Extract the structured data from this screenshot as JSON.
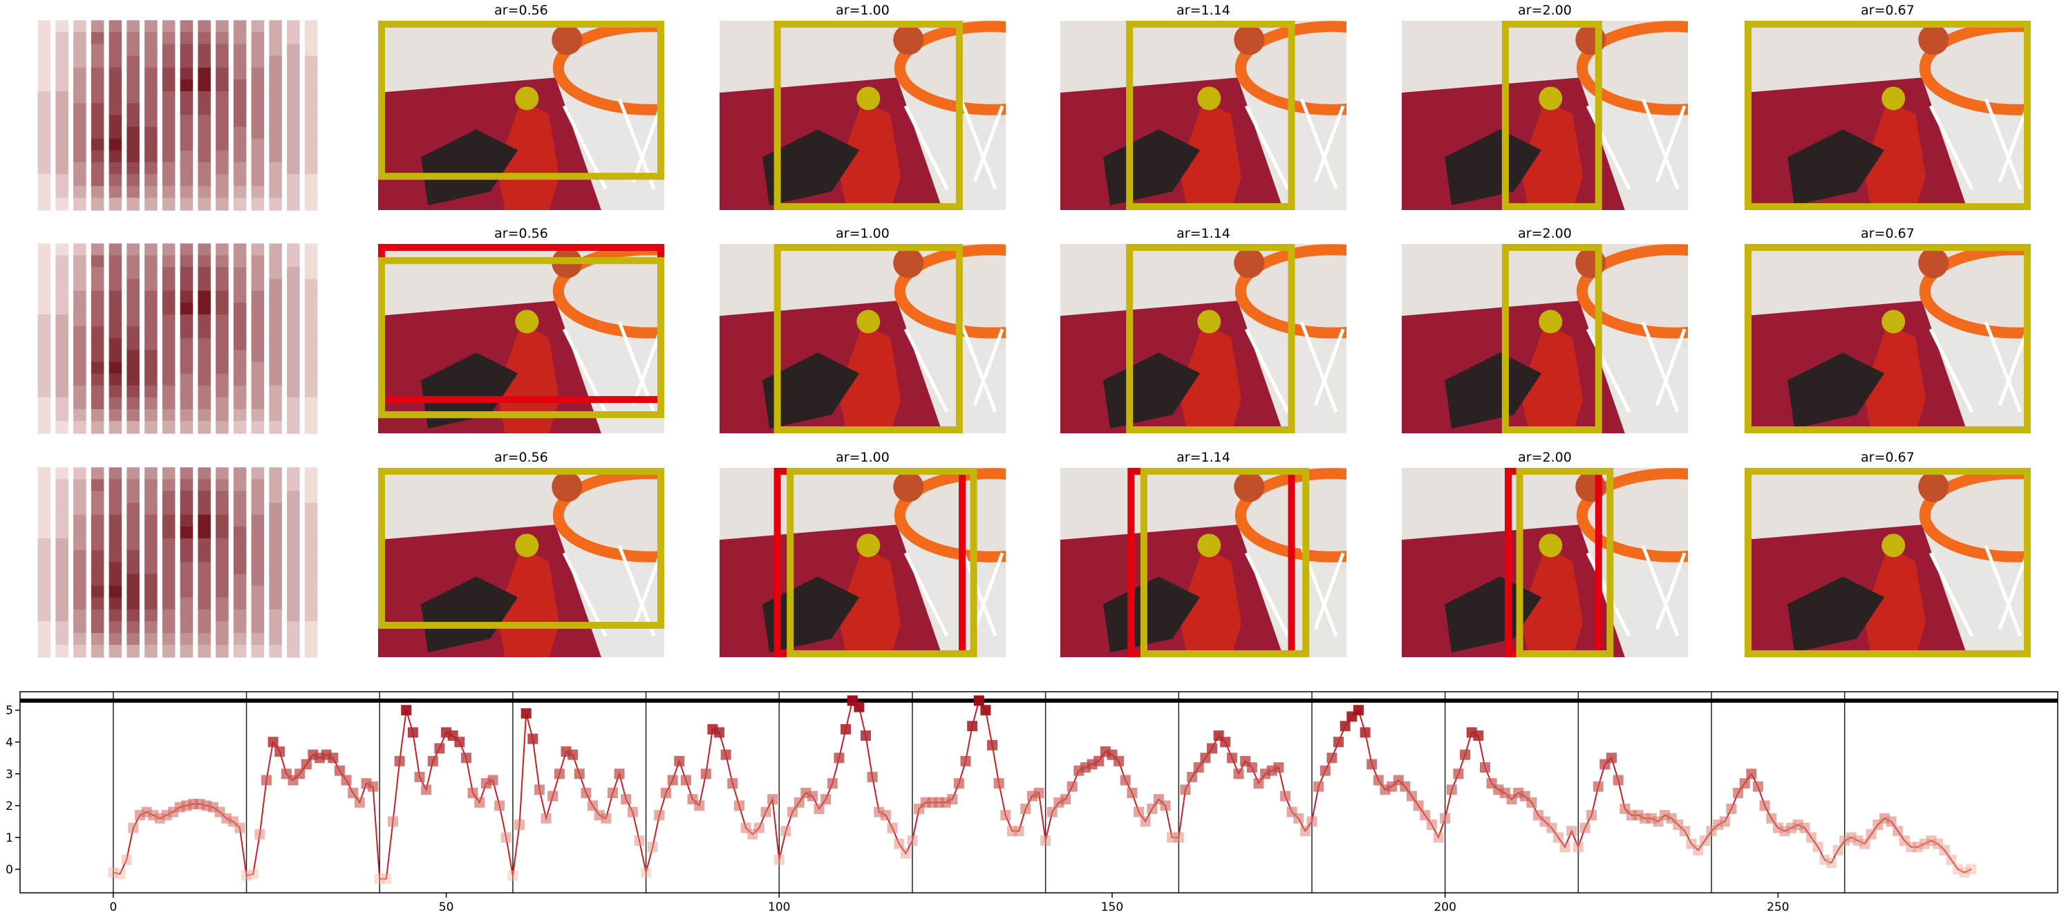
{
  "panel_titles": [
    "ar=0.56",
    "ar=1.00",
    "ar=1.14",
    "ar=2.00",
    "ar=0.67"
  ],
  "heatmap": {
    "colors": [
      "#fff5f0",
      "#67000d"
    ],
    "matrix": [
      [
        0.1,
        0.1,
        0.2,
        0.4,
        0.5,
        0.4,
        0.4,
        0.4,
        0.5,
        0.5,
        0.4,
        0.4,
        0.3,
        0.3,
        0.2,
        0.1
      ],
      [
        0.1,
        0.2,
        0.3,
        0.6,
        0.6,
        0.5,
        0.5,
        0.5,
        0.6,
        0.6,
        0.5,
        0.4,
        0.4,
        0.3,
        0.2,
        0.1
      ],
      [
        0.1,
        0.2,
        0.3,
        0.5,
        0.6,
        0.5,
        0.5,
        0.6,
        0.7,
        0.7,
        0.6,
        0.5,
        0.4,
        0.3,
        0.3,
        0.1
      ],
      [
        0.1,
        0.2,
        0.3,
        0.5,
        0.6,
        0.6,
        0.5,
        0.6,
        0.7,
        0.7,
        0.6,
        0.5,
        0.4,
        0.4,
        0.3,
        0.2
      ],
      [
        0.1,
        0.2,
        0.4,
        0.6,
        0.7,
        0.6,
        0.6,
        0.7,
        0.8,
        0.9,
        0.7,
        0.5,
        0.5,
        0.4,
        0.3,
        0.2
      ],
      [
        0.1,
        0.2,
        0.4,
        0.6,
        0.7,
        0.6,
        0.6,
        0.7,
        0.9,
        0.9,
        0.7,
        0.6,
        0.5,
        0.4,
        0.3,
        0.2
      ],
      [
        0.2,
        0.3,
        0.4,
        0.6,
        0.7,
        0.6,
        0.6,
        0.6,
        0.7,
        0.7,
        0.6,
        0.6,
        0.5,
        0.4,
        0.3,
        0.2
      ],
      [
        0.2,
        0.3,
        0.5,
        0.7,
        0.7,
        0.7,
        0.6,
        0.6,
        0.7,
        0.7,
        0.6,
        0.6,
        0.5,
        0.4,
        0.3,
        0.2
      ],
      [
        0.2,
        0.3,
        0.5,
        0.7,
        0.8,
        0.7,
        0.6,
        0.6,
        0.6,
        0.6,
        0.6,
        0.6,
        0.5,
        0.4,
        0.3,
        0.2
      ],
      [
        0.2,
        0.3,
        0.5,
        0.7,
        0.8,
        0.8,
        0.7,
        0.6,
        0.6,
        0.6,
        0.6,
        0.5,
        0.5,
        0.4,
        0.3,
        0.2
      ],
      [
        0.2,
        0.3,
        0.5,
        0.8,
        0.9,
        0.8,
        0.7,
        0.6,
        0.6,
        0.6,
        0.6,
        0.5,
        0.4,
        0.4,
        0.3,
        0.2
      ],
      [
        0.2,
        0.3,
        0.5,
        0.7,
        0.8,
        0.8,
        0.7,
        0.6,
        0.5,
        0.6,
        0.5,
        0.5,
        0.4,
        0.4,
        0.3,
        0.2
      ],
      [
        0.2,
        0.3,
        0.4,
        0.6,
        0.7,
        0.7,
        0.6,
        0.5,
        0.5,
        0.5,
        0.5,
        0.4,
        0.4,
        0.3,
        0.3,
        0.2
      ],
      [
        0.1,
        0.2,
        0.4,
        0.6,
        0.6,
        0.6,
        0.5,
        0.5,
        0.5,
        0.5,
        0.4,
        0.4,
        0.4,
        0.3,
        0.2,
        0.1
      ],
      [
        0.1,
        0.2,
        0.3,
        0.4,
        0.5,
        0.5,
        0.4,
        0.4,
        0.4,
        0.4,
        0.4,
        0.3,
        0.3,
        0.3,
        0.2,
        0.1
      ],
      [
        0.1,
        0.1,
        0.2,
        0.3,
        0.3,
        0.3,
        0.3,
        0.3,
        0.3,
        0.3,
        0.3,
        0.2,
        0.2,
        0.2,
        0.2,
        0.1
      ]
    ]
  },
  "chart_data": {
    "type": "line",
    "x": [
      0,
      1,
      2,
      3,
      4,
      5,
      6,
      7,
      8,
      9,
      10,
      11,
      12,
      13,
      14,
      15,
      16,
      17,
      18,
      19,
      20,
      21,
      22,
      23,
      24,
      25,
      26,
      27,
      28,
      29,
      30,
      31,
      32,
      33,
      34,
      35,
      36,
      37,
      38,
      39,
      40,
      41,
      42,
      43,
      44,
      45,
      46,
      47,
      48,
      49,
      50,
      51,
      52,
      53,
      54,
      55,
      56,
      57,
      58,
      59,
      60,
      61,
      62,
      63,
      64,
      65,
      66,
      67,
      68,
      69,
      70,
      71,
      72,
      73,
      74,
      75,
      76,
      77,
      78,
      79,
      80,
      81,
      82,
      83,
      84,
      85,
      86,
      87,
      88,
      89,
      90,
      91,
      92,
      93,
      94,
      95,
      96,
      97,
      98,
      99,
      100,
      101,
      102,
      103,
      104,
      105,
      106,
      107,
      108,
      109,
      110,
      111,
      112,
      113,
      114,
      115,
      116,
      117,
      118,
      119,
      120,
      121,
      122,
      123,
      124,
      125,
      126,
      127,
      128,
      129,
      130,
      131,
      132,
      133,
      134,
      135,
      136,
      137,
      138,
      139,
      140,
      141,
      142,
      143,
      144,
      145,
      146,
      147,
      148,
      149,
      150,
      151,
      152,
      153,
      154,
      155,
      156,
      157,
      158,
      159,
      160,
      161,
      162,
      163,
      164,
      165,
      166,
      167,
      168,
      169,
      170,
      171,
      172,
      173,
      174,
      175,
      176,
      177,
      178,
      179,
      180,
      181,
      182,
      183,
      184,
      185,
      186,
      187,
      188,
      189,
      190,
      191,
      192,
      193,
      194,
      195,
      196,
      197,
      198,
      199,
      200,
      201,
      202,
      203,
      204,
      205,
      206,
      207,
      208,
      209,
      210,
      211,
      212,
      213,
      214,
      215,
      216,
      217,
      218,
      219,
      220,
      221,
      222,
      223,
      224,
      225,
      226,
      227,
      228,
      229,
      230,
      231,
      232,
      233,
      234,
      235,
      236,
      237,
      238,
      239,
      240,
      241,
      242,
      243,
      244,
      245,
      246,
      247,
      248,
      249,
      250,
      251,
      252,
      253,
      254,
      255,
      256,
      257,
      258,
      259,
      260,
      261,
      262,
      263,
      264,
      265,
      266,
      267,
      268,
      269,
      270,
      271,
      272,
      273,
      274,
      275,
      276,
      277,
      278,
      279
    ],
    "values": [
      -0.1,
      -0.15,
      0.3,
      1.3,
      1.7,
      1.8,
      1.7,
      1.6,
      1.7,
      1.8,
      1.95,
      2.0,
      2.05,
      2.05,
      2.0,
      1.95,
      1.8,
      1.6,
      1.5,
      1.3,
      -0.2,
      -0.15,
      1.1,
      2.8,
      4.0,
      3.7,
      3.0,
      2.8,
      3.0,
      3.3,
      3.6,
      3.5,
      3.6,
      3.5,
      3.1,
      2.8,
      2.4,
      2.1,
      2.7,
      2.6,
      -0.3,
      -0.3,
      1.5,
      3.4,
      5.0,
      4.3,
      2.9,
      2.5,
      3.4,
      3.8,
      4.3,
      4.2,
      4.0,
      3.5,
      2.4,
      2.1,
      2.7,
      2.8,
      2.0,
      1.0,
      -0.2,
      1.4,
      4.9,
      4.1,
      2.5,
      1.6,
      2.3,
      3.0,
      3.7,
      3.6,
      3.0,
      2.4,
      2.0,
      1.7,
      1.6,
      2.4,
      3.0,
      2.2,
      1.8,
      0.9,
      -0.1,
      0.7,
      1.7,
      2.4,
      2.8,
      3.4,
      2.8,
      2.2,
      2.0,
      3.0,
      4.4,
      4.3,
      3.6,
      2.7,
      2.0,
      1.3,
      1.1,
      1.3,
      1.8,
      2.2,
      0.3,
      1.2,
      1.8,
      2.1,
      2.4,
      2.3,
      1.9,
      2.2,
      2.7,
      3.5,
      4.4,
      5.3,
      5.1,
      4.2,
      2.9,
      1.8,
      1.7,
      1.3,
      0.8,
      0.5,
      0.9,
      1.9,
      2.1,
      2.1,
      2.1,
      2.1,
      2.2,
      2.7,
      3.4,
      4.5,
      5.3,
      5.0,
      3.9,
      2.7,
      1.7,
      1.2,
      1.2,
      1.9,
      2.3,
      2.4,
      0.9,
      1.8,
      2.1,
      2.2,
      2.6,
      3.1,
      3.2,
      3.3,
      3.4,
      3.7,
      3.6,
      3.4,
      2.8,
      2.4,
      1.8,
      1.5,
      1.9,
      2.2,
      2.0,
      1.0,
      1.0,
      2.5,
      2.9,
      3.2,
      3.5,
      3.8,
      4.2,
      4.0,
      3.5,
      3.0,
      3.4,
      3.2,
      2.7,
      3.0,
      3.1,
      3.2,
      2.3,
      1.8,
      1.6,
      1.2,
      1.5,
      2.6,
      3.1,
      3.5,
      4.0,
      4.5,
      4.8,
      5.0,
      4.3,
      3.3,
      2.8,
      2.5,
      2.6,
      2.8,
      2.6,
      2.3,
      2.0,
      1.7,
      1.4,
      1.0,
      1.6,
      2.5,
      3.0,
      3.6,
      4.3,
      4.2,
      3.2,
      2.7,
      2.5,
      2.4,
      2.2,
      2.4,
      2.3,
      2.1,
      1.7,
      1.5,
      1.3,
      1.0,
      0.7,
      1.2,
      0.7,
      1.3,
      1.7,
      2.6,
      3.3,
      3.5,
      2.8,
      1.9,
      1.7,
      1.7,
      1.6,
      1.6,
      1.5,
      1.7,
      1.6,
      1.4,
      1.2,
      0.8,
      0.6,
      0.9,
      1.2,
      1.4,
      1.5,
      1.9,
      2.4,
      2.7,
      3.0,
      2.6,
      2.0,
      1.6,
      1.3,
      1.2,
      1.3,
      1.4,
      1.3,
      1.0,
      0.7,
      0.3,
      0.2,
      0.6,
      0.9,
      1.0,
      0.9,
      0.8,
      1.1,
      1.4,
      1.6,
      1.5,
      1.2,
      0.9,
      0.7,
      0.7,
      0.8,
      0.9,
      0.8,
      0.6,
      0.3,
      0.0,
      -0.1,
      0.0
    ],
    "xlim": [
      -14,
      292
    ],
    "ylim": [
      -0.74,
      5.58
    ],
    "xticks": [
      0,
      50,
      100,
      150,
      200,
      250
    ],
    "yticks": [
      0,
      1,
      2,
      3,
      4,
      5
    ],
    "vlines": [
      0,
      20,
      40,
      60,
      80,
      100,
      120,
      140,
      160,
      180,
      200,
      220,
      240,
      260
    ],
    "hline": 5.3,
    "line_color": "#c81d25",
    "marker_colors": [
      "#fcbba1",
      "#99000d"
    ]
  }
}
